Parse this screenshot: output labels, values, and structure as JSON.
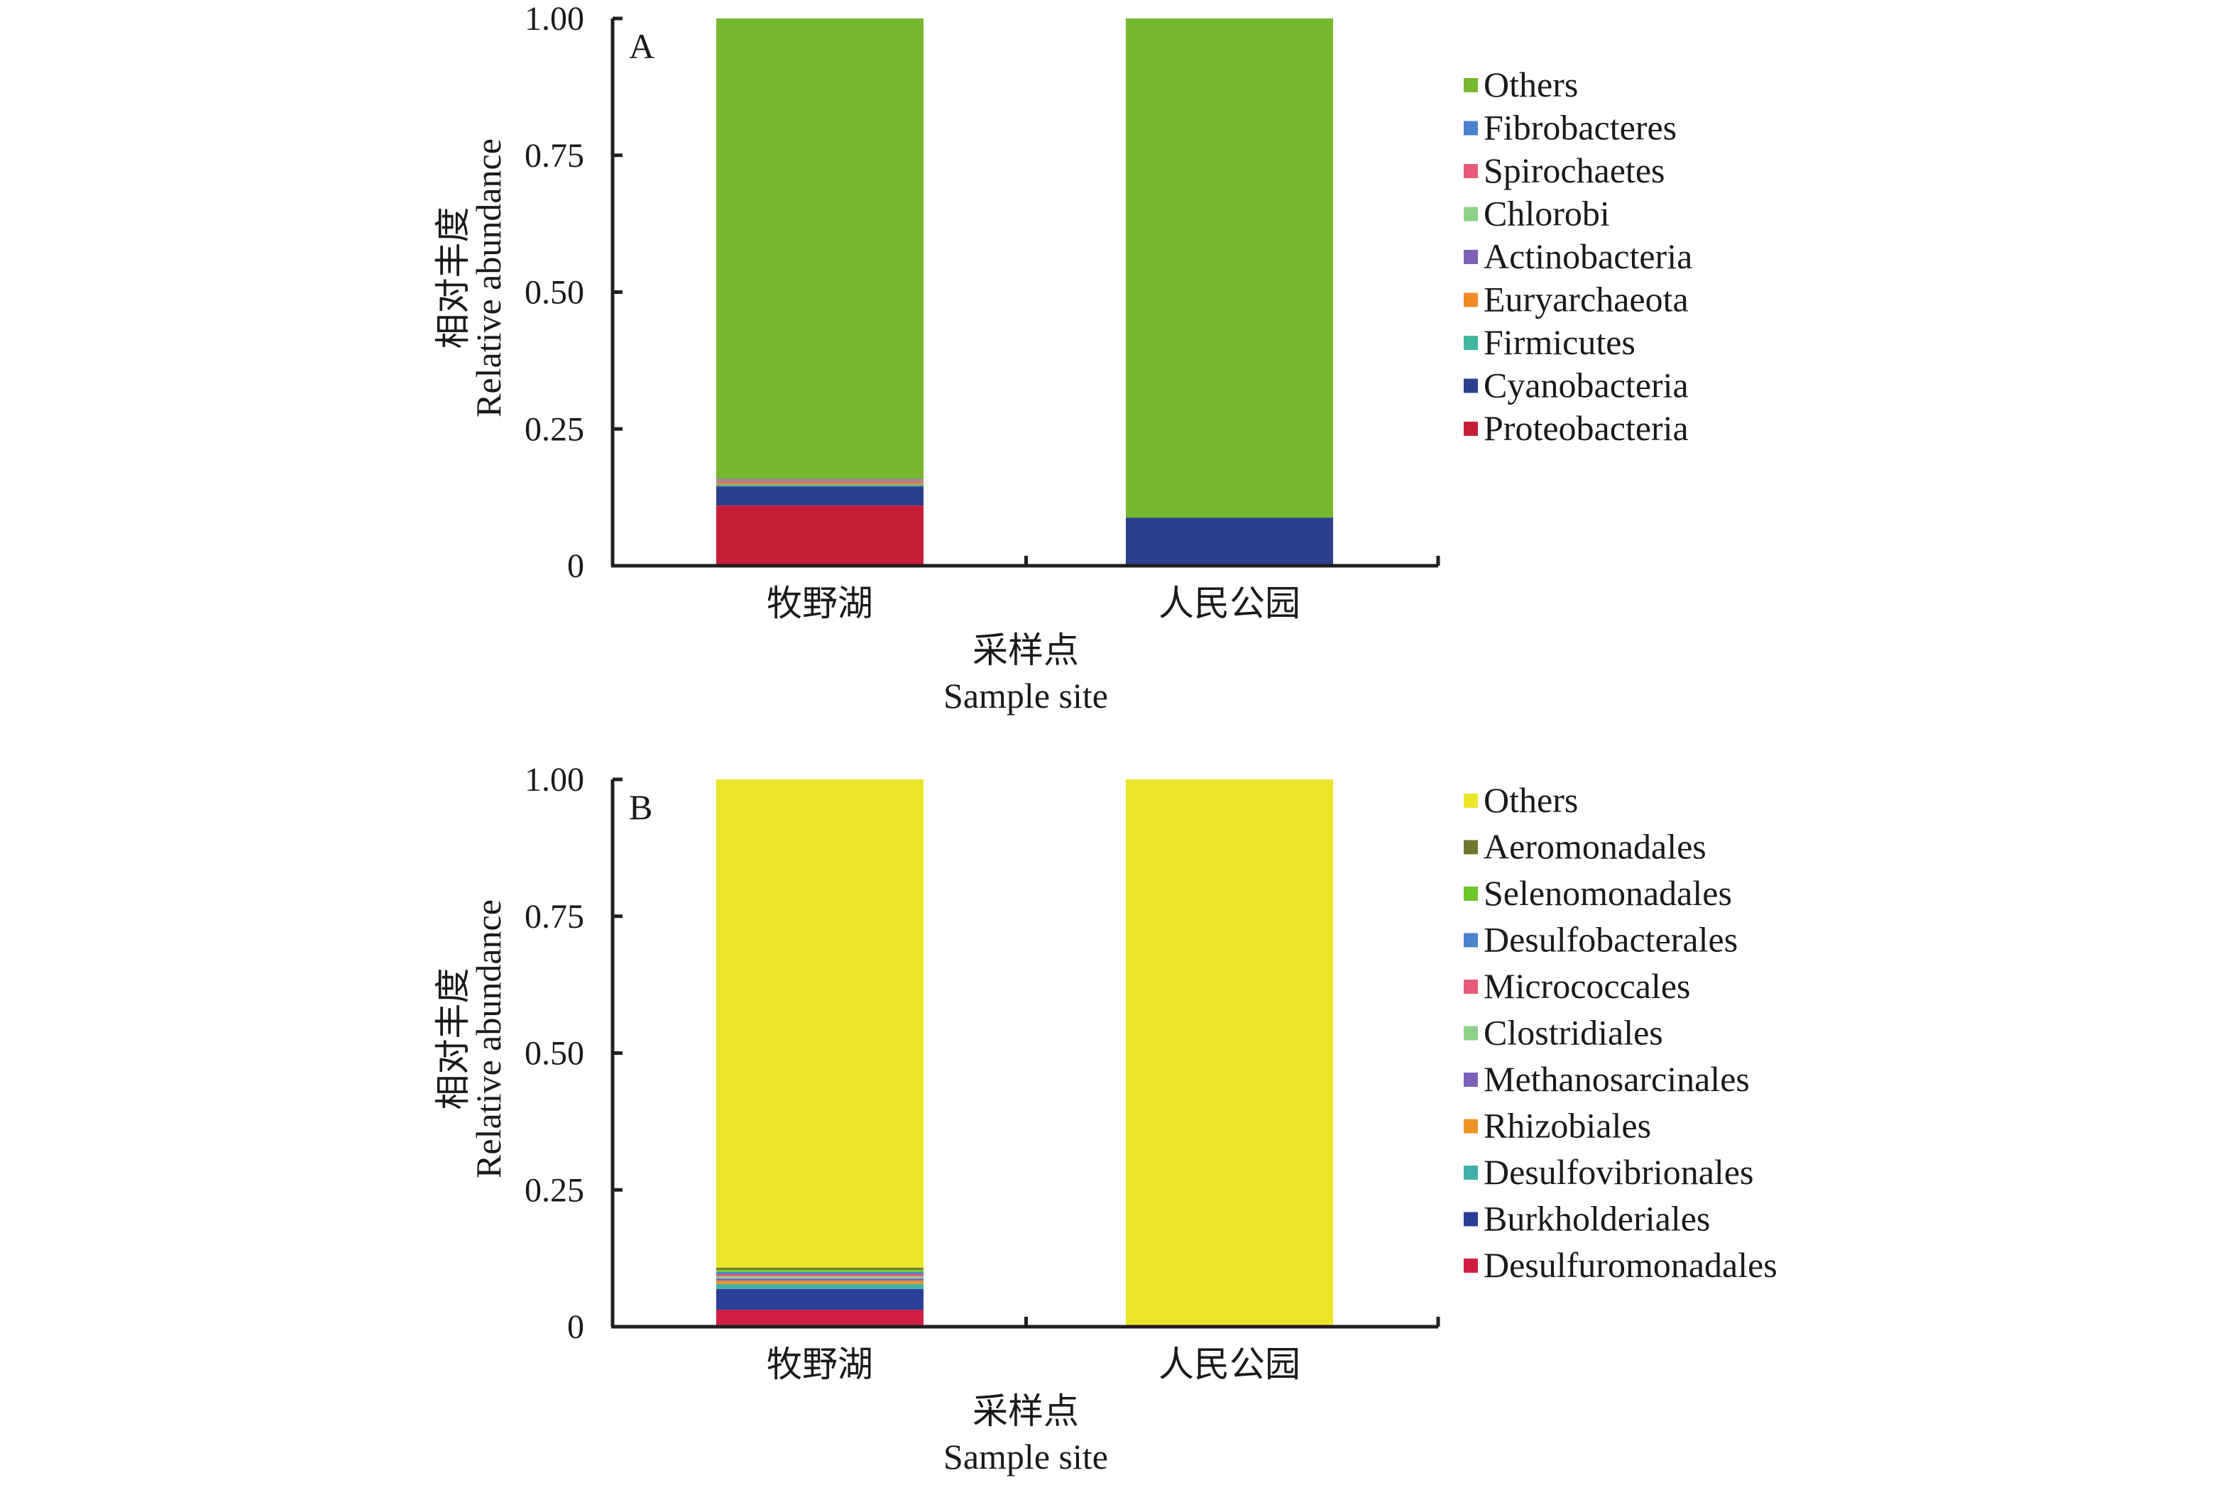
{
  "chart_data": [
    {
      "type": "bar",
      "stacked": true,
      "panel_label": "A",
      "title": "",
      "xlabel": [
        "采样点",
        "Sample site"
      ],
      "ylabel": [
        "相对丰度",
        "Relative abundance"
      ],
      "ylim": [
        0,
        1.0
      ],
      "yticks": [
        "0",
        "0.25",
        "0.50",
        "0.75",
        "1.00"
      ],
      "ytick_values": [
        0,
        0.25,
        0.5,
        0.75,
        1.0
      ],
      "grid": false,
      "legend_position": "right",
      "categories": [
        "牧野湖",
        "人民公园"
      ],
      "series": [
        {
          "name": "Proteobacteria",
          "color": "#c61e38",
          "values": [
            0.11,
            0.0
          ]
        },
        {
          "name": "Cyanobacteria",
          "color": "#2b3f8c",
          "values": [
            0.035,
            0.088
          ]
        },
        {
          "name": "Firmicutes",
          "color": "#41b59f",
          "values": [
            0.003,
            0.0
          ]
        },
        {
          "name": "Euryarchaeota",
          "color": "#f08a24",
          "values": [
            0.004,
            0.0
          ]
        },
        {
          "name": "Actinobacteria",
          "color": "#7d61b4",
          "values": [
            0.002,
            0.0
          ]
        },
        {
          "name": "Chlorobi",
          "color": "#8dd188",
          "values": [
            0.001,
            0.0
          ]
        },
        {
          "name": "Spirochaetes",
          "color": "#e65b78",
          "values": [
            0.003,
            0.0
          ]
        },
        {
          "name": "Fibrobacteres",
          "color": "#4a82cc",
          "values": [
            0.001,
            0.0
          ]
        },
        {
          "name": "Others",
          "color": "#76b82e",
          "values": [
            0.841,
            0.912
          ]
        }
      ],
      "legend_order": [
        "Others",
        "Fibrobacteres",
        "Spirochaetes",
        "Chlorobi",
        "Actinobacteria",
        "Euryarchaeota",
        "Firmicutes",
        "Cyanobacteria",
        "Proteobacteria"
      ]
    },
    {
      "type": "bar",
      "stacked": true,
      "panel_label": "B",
      "title": "",
      "xlabel": [
        "采样点",
        "Sample site"
      ],
      "ylabel": [
        "相对丰度",
        "Relative abundance"
      ],
      "ylim": [
        0,
        1.0
      ],
      "yticks": [
        "0",
        "0.25",
        "0.50",
        "0.75",
        "1.00"
      ],
      "ytick_values": [
        0,
        0.25,
        0.5,
        0.75,
        1.0
      ],
      "grid": false,
      "legend_position": "right",
      "categories": [
        "牧野湖",
        "人民公园"
      ],
      "series": [
        {
          "name": "Desulfuromonadales",
          "color": "#d01e40",
          "values": [
            0.031,
            0.0
          ]
        },
        {
          "name": "Burkholderiales",
          "color": "#2b3f98",
          "values": [
            0.038,
            0.0
          ]
        },
        {
          "name": "Desulfovibrionales",
          "color": "#41b0a8",
          "values": [
            0.009,
            0.0
          ]
        },
        {
          "name": "Rhizobiales",
          "color": "#ef9424",
          "values": [
            0.006,
            0.0
          ]
        },
        {
          "name": "Methanosarcinales",
          "color": "#7d61b8",
          "values": [
            0.004,
            0.0
          ]
        },
        {
          "name": "Clostridiales",
          "color": "#8dd188",
          "values": [
            0.004,
            0.0
          ]
        },
        {
          "name": "Micrococcales",
          "color": "#e65b78",
          "values": [
            0.004,
            0.0
          ]
        },
        {
          "name": "Desulfobacterales",
          "color": "#4a82cc",
          "values": [
            0.004,
            0.0
          ]
        },
        {
          "name": "Selenomonadales",
          "color": "#6ec62a",
          "values": [
            0.004,
            0.0
          ]
        },
        {
          "name": "Aeromonadales",
          "color": "#707830",
          "values": [
            0.004,
            0.0
          ]
        },
        {
          "name": "Others",
          "color": "#ebe62a",
          "values": [
            0.892,
            1.0
          ]
        }
      ],
      "legend_order": [
        "Others",
        "Aeromonadales",
        "Selenomonadales",
        "Desulfobacterales",
        "Micrococcales",
        "Clostridiales",
        "Methanosarcinales",
        "Rhizobiales",
        "Desulfovibrionales",
        "Burkholderiales",
        "Desulfuromonadales"
      ]
    }
  ]
}
